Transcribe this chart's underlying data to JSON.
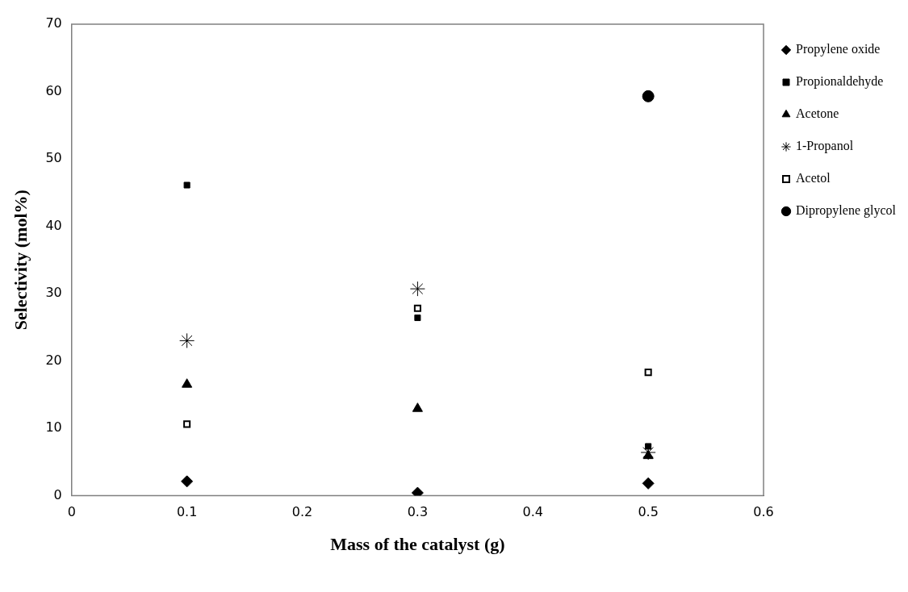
{
  "chart_data": {
    "type": "scatter",
    "xlabel": "Mass of the catalyst (g)",
    "ylabel": "Selectivity (mol%)",
    "x": [
      0.1,
      0.3,
      0.5
    ],
    "series": [
      {
        "name": "Propylene oxide",
        "color": "#000000",
        "marker": "diamond",
        "values": [
          2.1,
          0.4,
          1.8
        ]
      },
      {
        "name": "Propionaldehyde",
        "color": "#000000",
        "marker": "square",
        "values": [
          46.1,
          26.4,
          7.3
        ]
      },
      {
        "name": "Acetone",
        "color": "#000000",
        "marker": "triangle",
        "values": [
          16.5,
          12.9,
          5.9
        ]
      },
      {
        "name": "1-Propanol",
        "color": "#000000",
        "marker": "cross",
        "values": [
          23,
          30.7,
          6.4
        ]
      },
      {
        "name": "Acetol",
        "color": "#ffffff",
        "marker": "square",
        "values": [
          10.6,
          27.8,
          18.3
        ]
      },
      {
        "name": "Dipropylene glycol",
        "color": "#000000",
        "marker": "circle",
        "values": [
          null,
          null,
          59.3
        ]
      }
    ],
    "xlim": [
      0,
      0.6
    ],
    "xticks": [
      0,
      0.1,
      0.2,
      0.3,
      0.4,
      0.5,
      0.6
    ],
    "ylim": [
      0,
      70
    ],
    "yticks": [
      0,
      10,
      20,
      30,
      40,
      50,
      60,
      70
    ],
    "grid": false,
    "legend": "right"
  }
}
